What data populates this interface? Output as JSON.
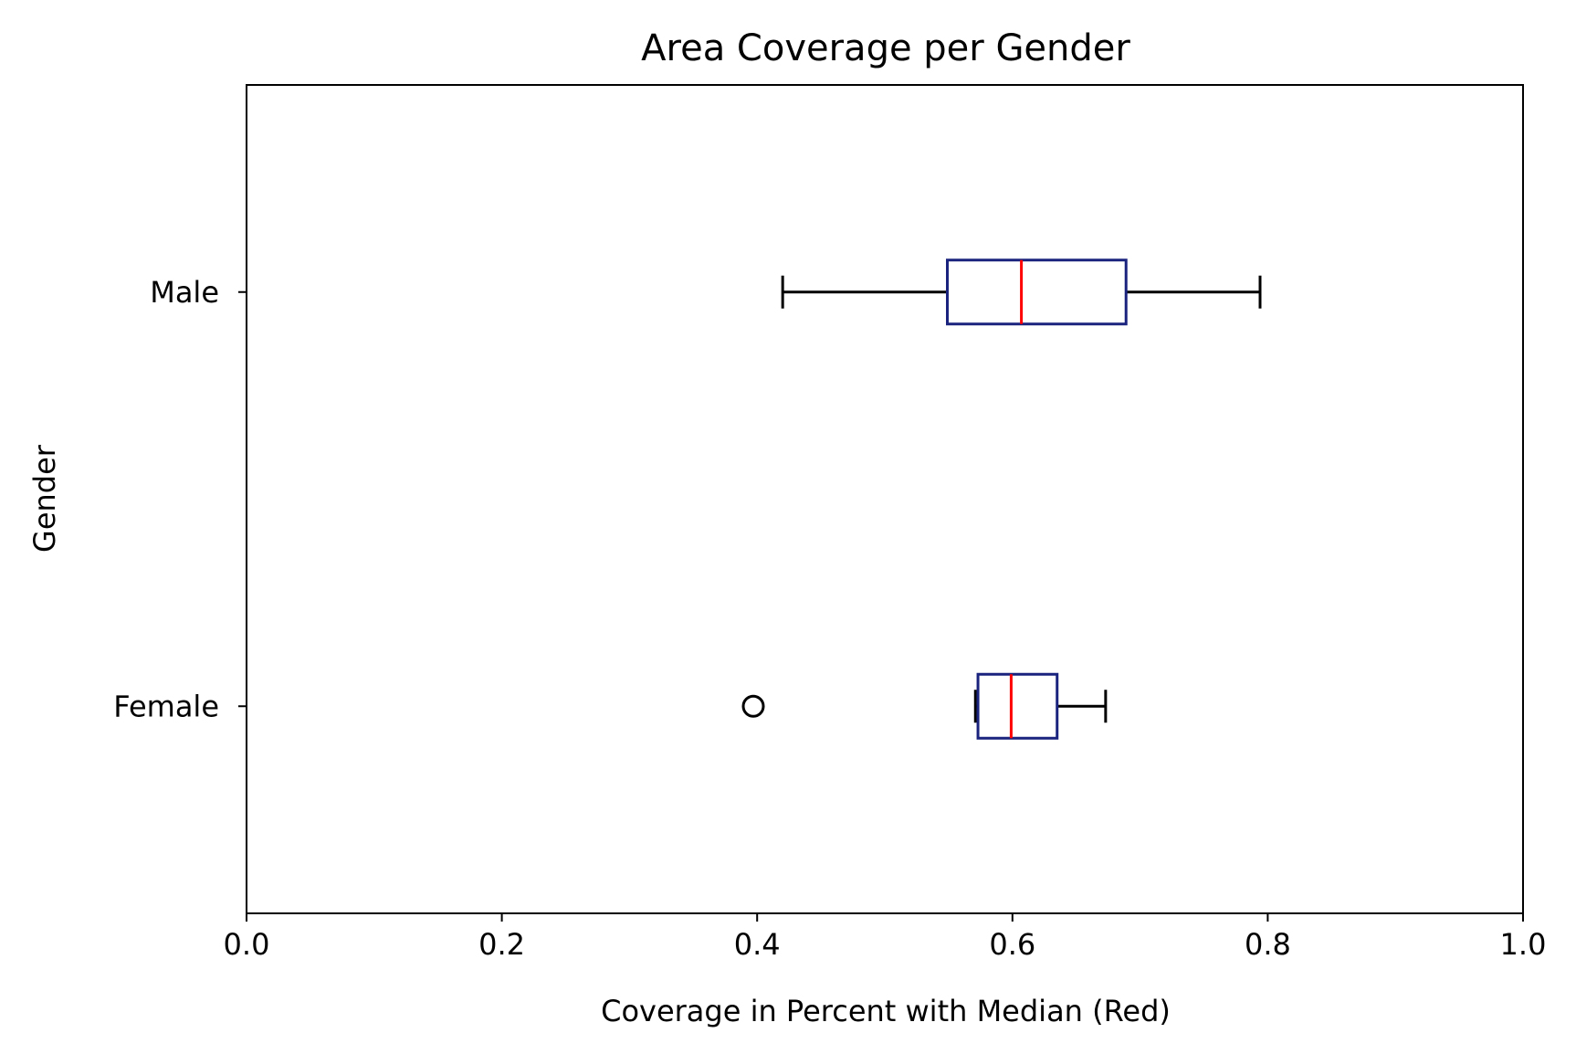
{
  "chart_data": {
    "type": "box",
    "orientation": "horizontal",
    "title": "Area Coverage per Gender",
    "xlabel": "Coverage in Percent with Median (Red)",
    "ylabel": "Gender",
    "xlim": [
      0.0,
      1.0
    ],
    "x_ticks": [
      "0.0",
      "0.2",
      "0.4",
      "0.6",
      "0.8",
      "1.0"
    ],
    "x_tick_values": [
      0.0,
      0.2,
      0.4,
      0.6,
      0.8,
      1.0
    ],
    "grid": false,
    "categories": [
      "Male",
      "Female"
    ],
    "boxes": [
      {
        "category": "Male",
        "whisker_low": 0.42,
        "q1": 0.549,
        "median": 0.607,
        "q3": 0.689,
        "whisker_high": 0.794,
        "outliers": []
      },
      {
        "category": "Female",
        "whisker_low": 0.571,
        "q1": 0.573,
        "median": 0.599,
        "q3": 0.635,
        "whisker_high": 0.673,
        "outliers": [
          0.397
        ]
      }
    ],
    "colors": {
      "box": "#1a237e",
      "median": "#ff0000",
      "whisker": "#000000",
      "outlier": "#000000"
    }
  }
}
